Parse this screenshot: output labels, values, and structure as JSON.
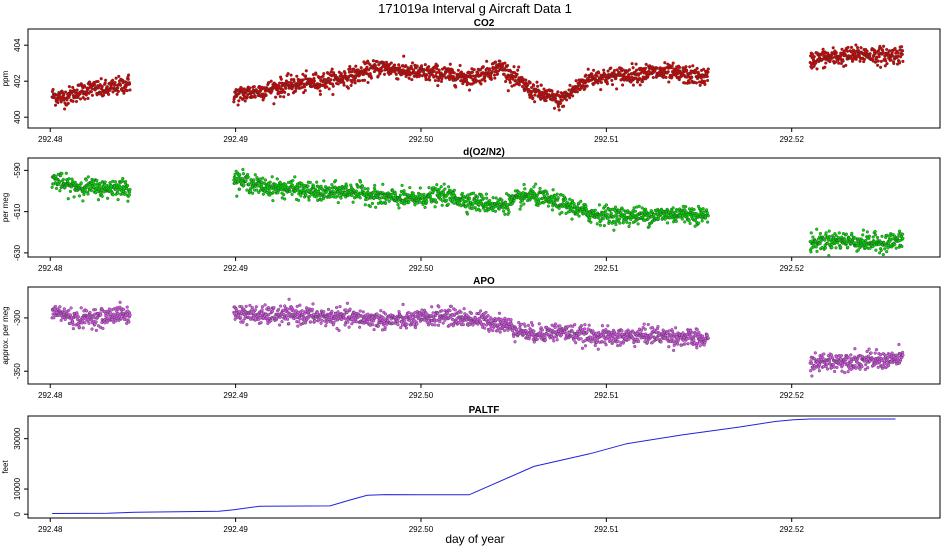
{
  "figure": {
    "title": "171019a   Interval g Aircraft Data 1",
    "xlabel": "day of year"
  },
  "chart_data": [
    {
      "type": "scatter",
      "title": "CO2",
      "ylabel": "ppm",
      "xlim": [
        292.4788,
        292.528
      ],
      "ylim": [
        399.4,
        404.9
      ],
      "xticks": [
        292.48,
        292.49,
        292.5,
        292.51,
        292.52
      ],
      "xtick_labels": [
        "292.48",
        "292.49",
        "292.50",
        "292.51",
        "292.52"
      ],
      "yticks": [
        400,
        402,
        404
      ],
      "ytick_labels": [
        "400",
        "402",
        "404"
      ],
      "color": "#e00000",
      "series": [
        {
          "segments": [
            {
              "x": [
                292.4801,
                292.4808,
                292.4815,
                292.4822,
                292.4829,
                292.4836,
                292.4843
              ],
              "y": [
                401.2,
                401.1,
                401.4,
                401.6,
                401.5,
                401.7,
                401.9
              ]
            },
            {
              "x": [
                292.4899,
                292.4915,
                292.4931,
                292.4947,
                292.4963,
                292.4979,
                292.4995,
                292.5011,
                292.5027,
                292.5043,
                292.5059,
                292.5075,
                292.5091,
                292.5107,
                292.5123,
                292.5139,
                292.5155
              ],
              "y": [
                401.2,
                401.5,
                401.8,
                402.0,
                402.3,
                402.8,
                402.5,
                402.4,
                402.2,
                402.8,
                401.5,
                400.9,
                402.2,
                402.3,
                402.5,
                402.4,
                402.2
              ]
            },
            {
              "x": [
                292.521,
                292.522,
                292.523,
                292.524,
                292.525,
                292.526
              ],
              "y": [
                403.2,
                403.3,
                403.4,
                403.5,
                403.4,
                403.5
              ]
            }
          ]
        }
      ]
    },
    {
      "type": "scatter",
      "title": "d(O2/N2)",
      "ylabel": "per meg",
      "xlim": [
        292.4788,
        292.528
      ],
      "ylim": [
        -632,
        -584
      ],
      "xticks": [
        292.48,
        292.49,
        292.5,
        292.51,
        292.52
      ],
      "xtick_labels": [
        "292.48",
        "292.49",
        "292.50",
        "292.51",
        "292.52"
      ],
      "yticks": [
        -590,
        -610,
        -630
      ],
      "ytick_labels": [
        "-590",
        "-610",
        "-630"
      ],
      "color": "#00dd00",
      "series": [
        {
          "segments": [
            {
              "x": [
                292.4801,
                292.4808,
                292.4815,
                292.4822,
                292.4829,
                292.4836,
                292.4843
              ],
              "y": [
                -594,
                -597,
                -598,
                -598,
                -599,
                -598,
                -599
              ]
            },
            {
              "x": [
                292.4899,
                292.4915,
                292.4931,
                292.4947,
                292.4963,
                292.4979,
                292.4995,
                292.5011,
                292.5027,
                292.5043,
                292.5059,
                292.5075,
                292.5091,
                292.5107,
                292.5123,
                292.5139,
                292.5155
              ],
              "y": [
                -594,
                -598,
                -599,
                -601,
                -600,
                -603,
                -604,
                -602,
                -605,
                -607,
                -602,
                -606,
                -611,
                -612,
                -612,
                -611,
                -612
              ]
            },
            {
              "x": [
                292.521,
                292.522,
                292.523,
                292.524,
                292.525,
                292.526
              ],
              "y": [
                -625,
                -624,
                -624,
                -625,
                -625,
                -624
              ]
            }
          ]
        }
      ]
    },
    {
      "type": "scatter",
      "title": "APO",
      "ylabel": "approx. per meg",
      "xlim": [
        292.4788,
        292.528
      ],
      "ylim": [
        -362,
        -271
      ],
      "xticks": [
        292.48,
        292.49,
        292.5,
        292.51,
        292.52
      ],
      "xtick_labels": [
        "292.48",
        "292.49",
        "292.50",
        "292.51",
        "292.52"
      ],
      "yticks": [
        -300,
        -350
      ],
      "ytick_labels": [
        "-300",
        "-350"
      ],
      "color": "#dd55ee",
      "series": [
        {
          "segments": [
            {
              "x": [
                292.4801,
                292.4808,
                292.4815,
                292.4822,
                292.4829,
                292.4836,
                292.4843
              ],
              "y": [
                -294,
                -297,
                -302,
                -299,
                -300,
                -296,
                -298
              ]
            },
            {
              "x": [
                292.4899,
                292.4915,
                292.4931,
                292.4947,
                292.4963,
                292.4979,
                292.4995,
                292.5011,
                292.5027,
                292.5043,
                292.5059,
                292.5075,
                292.5091,
                292.5107,
                292.5123,
                292.5139,
                292.5155
              ],
              "y": [
                -295,
                -298,
                -297,
                -299,
                -300,
                -302,
                -302,
                -298,
                -301,
                -305,
                -315,
                -313,
                -317,
                -318,
                -316,
                -318,
                -321
              ]
            },
            {
              "x": [
                292.521,
                292.522,
                292.523,
                292.524,
                292.525,
                292.526
              ],
              "y": [
                -343,
                -341,
                -340,
                -340,
                -340,
                -338
              ]
            }
          ]
        }
      ]
    },
    {
      "type": "line",
      "title": "PALTF",
      "ylabel": "feet",
      "xlim": [
        292.4788,
        292.528
      ],
      "ylim": [
        -1500,
        39000
      ],
      "xticks": [
        292.48,
        292.49,
        292.5,
        292.51,
        292.52
      ],
      "xtick_labels": [
        "292.48",
        "292.49",
        "292.50",
        "292.51",
        "292.52"
      ],
      "yticks": [
        0,
        10000,
        30000
      ],
      "ytick_labels": [
        "0",
        "10000",
        "30000"
      ],
      "color": "#2222dd",
      "series": [
        {
          "x": [
            292.4801,
            292.4831,
            292.4846,
            292.4891,
            292.4899,
            292.4913,
            292.4951,
            292.4961,
            292.4971,
            292.4981,
            292.5001,
            292.5026,
            292.5061,
            292.5091,
            292.5111,
            292.5141,
            292.5171,
            292.5191,
            292.5201,
            292.521,
            292.5256
          ],
          "y": [
            300,
            400,
            800,
            1200,
            1800,
            3200,
            3300,
            5500,
            7500,
            7800,
            7700,
            7700,
            19000,
            24000,
            28000,
            31500,
            34500,
            36800,
            37500,
            37800,
            37800
          ]
        }
      ]
    }
  ]
}
